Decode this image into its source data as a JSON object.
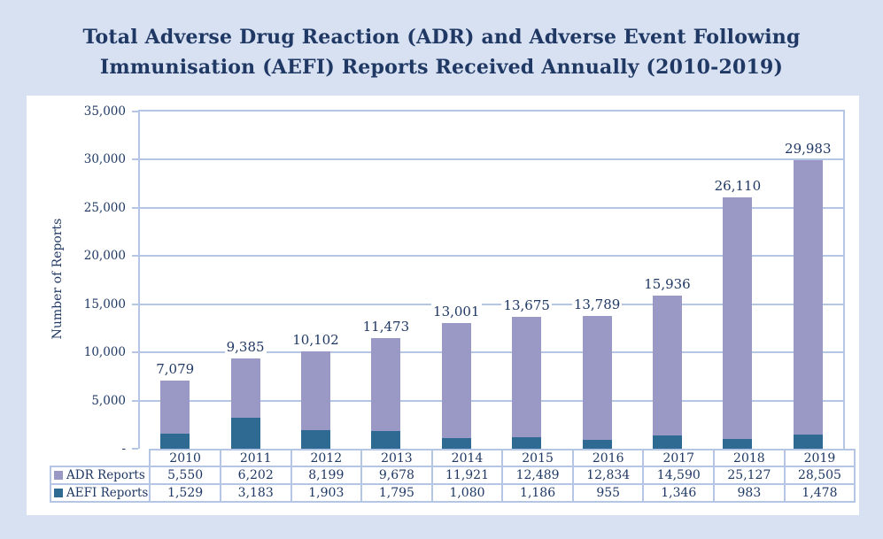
{
  "title": {
    "line1": "Total Adverse Drug Reaction (ADR) and Adverse Event Following",
    "line2": "Immunisation (AEFI) Reports Received Annually (2010-2019)"
  },
  "colors": {
    "page_background": "#d8e1f2",
    "panel_background": "#ffffff",
    "text_navy": "#1f3864",
    "grid_border": "#b5c5e4",
    "adr_purple": "#9a99c6",
    "aefi_teal": "#2e6a91"
  },
  "chart_data": {
    "type": "bar",
    "stacked": true,
    "title": "Total Adverse Drug Reaction (ADR) and Adverse Event Following Immunisation (AEFI) Reports Received Annually (2010-2019)",
    "categories": [
      "2010",
      "2011",
      "2012",
      "2013",
      "2014",
      "2015",
      "2016",
      "2017",
      "2018",
      "2019"
    ],
    "series": [
      {
        "name": "ADR Reports",
        "color": "#9a99c6",
        "stack_position": "top",
        "values": [
          5550,
          6202,
          8199,
          9678,
          11921,
          12489,
          12834,
          14590,
          25127,
          28505
        ]
      },
      {
        "name": "AEFI Reports",
        "color": "#2e6a91",
        "stack_position": "bottom",
        "values": [
          1529,
          3183,
          1903,
          1795,
          1080,
          1186,
          955,
          1346,
          983,
          1478
        ]
      }
    ],
    "totals": [
      7079,
      9385,
      10102,
      11473,
      13001,
      13675,
      13789,
      15936,
      26110,
      29983
    ],
    "total_labels_shown": true,
    "xlabel": "",
    "ylabel": "Number of Reports",
    "ylim": [
      0,
      35000
    ],
    "ytick_step": 5000,
    "ytick_labels": [
      "35,000",
      "30,000",
      "25,000",
      "20,000",
      "15,000",
      "10,000",
      "5,000",
      "-"
    ],
    "grid": true,
    "legend_position": "data-table-left",
    "data_table_shown": true
  }
}
